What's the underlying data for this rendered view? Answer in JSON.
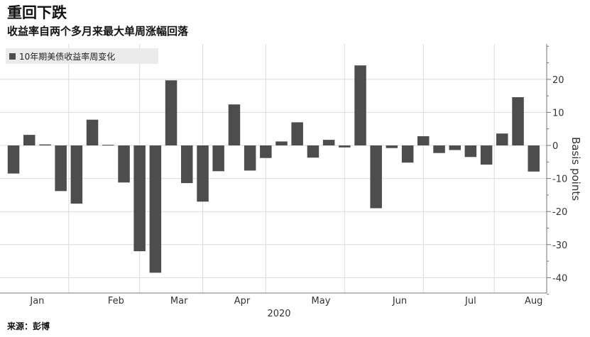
{
  "header": {
    "title": "重回下跌",
    "subtitle": "收益率自两个多月来最大单周涨幅回落"
  },
  "source": "来源：彭博",
  "chart_data": {
    "type": "bar",
    "title": "重回下跌",
    "subtitle": "收益率自两个多月来最大单周涨幅回落",
    "series": [
      {
        "name": "10年期美债收益率周变化",
        "color": "#4d4d4d",
        "values": [
          -8.5,
          3.2,
          0.3,
          -13.8,
          -17.6,
          7.8,
          0.2,
          -11.2,
          -32.0,
          -38.5,
          19.7,
          -11.4,
          -17.0,
          -7.8,
          12.4,
          -7.6,
          -3.8,
          1.2,
          7.0,
          -3.7,
          1.7,
          -0.6,
          24.2,
          -19.0,
          -0.8,
          -5.2,
          2.8,
          -2.3,
          -1.4,
          -3.5,
          -5.8,
          3.6,
          14.6,
          -7.9
        ]
      }
    ],
    "x_tick_labels": [
      "Jan",
      "Feb",
      "Mar",
      "Apr",
      "May",
      "Jun",
      "Jul",
      "Aug"
    ],
    "x_tick_label_weeks": [
      1.5,
      6.5,
      10.5,
      14.5,
      19.5,
      24.5,
      29.0,
      33.0
    ],
    "x_separator_weeks": [
      4,
      8.5,
      12.5,
      16.5,
      21.5,
      26.5,
      31.0
    ],
    "x_year_label": "2020",
    "ylabel": "Basis points",
    "ylim": [
      -45,
      30
    ],
    "yticks": [
      -40,
      -30,
      -20,
      -10,
      0,
      10,
      20
    ],
    "y_axis_side": "right",
    "grid": true,
    "legend_position": "top-left"
  }
}
